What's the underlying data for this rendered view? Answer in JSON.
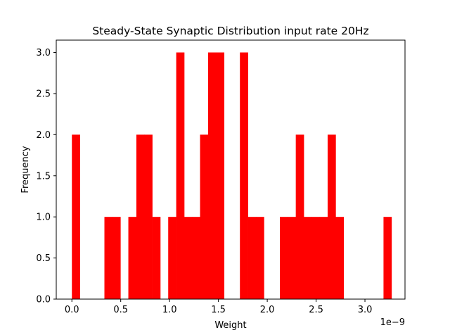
{
  "chart_data": {
    "type": "bar",
    "title": "Steady-State Synaptic Distribution input rate 20Hz",
    "xlabel": "Weight",
    "ylabel": "Frequency",
    "x_offset_text": "1e−9",
    "xlim": [
      -0.16,
      3.41
    ],
    "ylim": [
      0,
      3.15
    ],
    "bar_color": "#ff0000",
    "bin_width": 0.0815,
    "x_ticks": [
      0.0,
      0.5,
      1.0,
      1.5,
      2.0,
      2.5,
      3.0
    ],
    "x_tick_labels": [
      "0.0",
      "0.5",
      "1.0",
      "1.5",
      "2.0",
      "2.5",
      "3.0"
    ],
    "y_ticks": [
      0.0,
      0.5,
      1.0,
      1.5,
      2.0,
      2.5,
      3.0
    ],
    "y_tick_labels": [
      "0.0",
      "0.5",
      "1.0",
      "1.5",
      "2.0",
      "2.5",
      "3.0"
    ],
    "bins": [
      {
        "x": 0.0,
        "value": 2
      },
      {
        "x": 0.333,
        "value": 1
      },
      {
        "x": 0.415,
        "value": 1
      },
      {
        "x": 0.578,
        "value": 1
      },
      {
        "x": 0.66,
        "value": 2
      },
      {
        "x": 0.741,
        "value": 2
      },
      {
        "x": 0.823,
        "value": 1
      },
      {
        "x": 0.986,
        "value": 1
      },
      {
        "x": 1.068,
        "value": 3
      },
      {
        "x": 1.149,
        "value": 1
      },
      {
        "x": 1.231,
        "value": 1
      },
      {
        "x": 1.312,
        "value": 2
      },
      {
        "x": 1.394,
        "value": 3
      },
      {
        "x": 1.476,
        "value": 3
      },
      {
        "x": 1.72,
        "value": 3
      },
      {
        "x": 1.802,
        "value": 1
      },
      {
        "x": 1.884,
        "value": 1
      },
      {
        "x": 2.129,
        "value": 1
      },
      {
        "x": 2.21,
        "value": 1
      },
      {
        "x": 2.292,
        "value": 2
      },
      {
        "x": 2.373,
        "value": 1
      },
      {
        "x": 2.455,
        "value": 1
      },
      {
        "x": 2.537,
        "value": 1
      },
      {
        "x": 2.618,
        "value": 2
      },
      {
        "x": 2.7,
        "value": 1
      },
      {
        "x": 3.19,
        "value": 1
      }
    ]
  }
}
